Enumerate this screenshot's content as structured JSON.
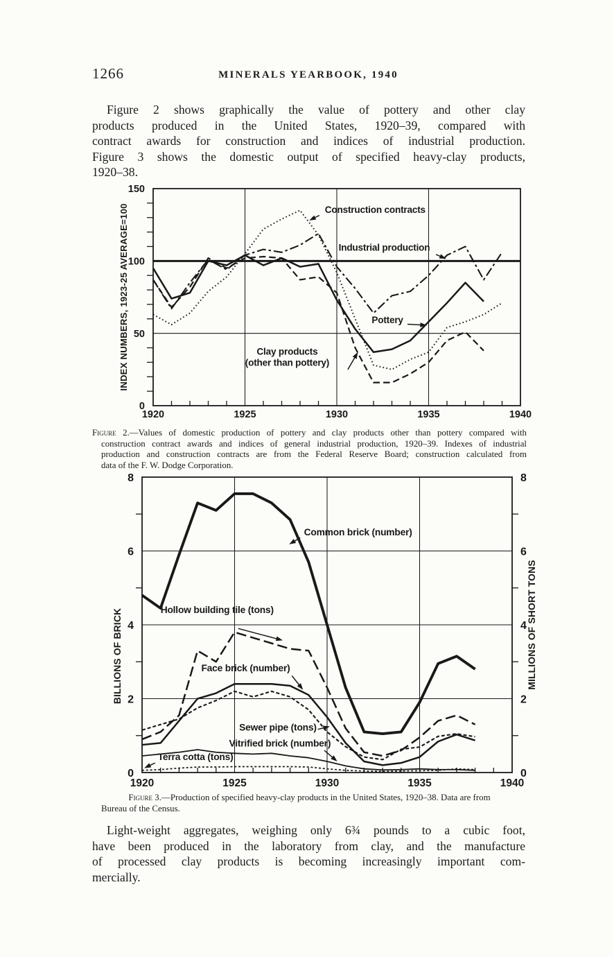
{
  "page": {
    "page_number": "1266",
    "running_head": "MINERALS YEARBOOK, 1940",
    "paragraph_1": {
      "lines": [
        "Figure 2 shows graphically the value of pottery and other clay",
        "products produced in the United States, 1920–39, compared with",
        "contract awards for construction and indices of industrial production.",
        "Figure 3 shows the domestic output of specified heavy-clay products,",
        "1920–38."
      ]
    },
    "figure2_caption": {
      "label": "Figure 2.",
      "lines": [
        "—Values of domestic production of pottery and clay products other than pottery compared with",
        "construction contract awards and indices of general industrial production, 1920–39. Indexes of industrial",
        "production and construction contracts are from the Federal Reserve Board; construction calculated from",
        "data of the F. W. Dodge Corporation."
      ]
    },
    "figure3_caption": {
      "label": "Figure 3.",
      "lines": [
        "—Production of specified heavy-clay products in the United States, 1920–38.  Data are from",
        "Bureau of the Census."
      ]
    },
    "paragraph_2": {
      "lines": [
        "Light-weight aggregates, weighing only 6¾ pounds to a cubic foot,",
        "have been produced in the laboratory from clay, and the manufacture",
        "of processed clay products is becoming increasingly important com-",
        "mercially."
      ]
    }
  },
  "ink_color": "#191919",
  "chart_data": [
    {
      "id": "figure2",
      "type": "line",
      "title": "",
      "xlabel": "",
      "ylabel": "INDEX NUMBERS, 1923-25 AVERAGE=100",
      "x_range": [
        1920,
        1940
      ],
      "ylim": [
        0,
        150
      ],
      "x_ticks_labeled": [
        1920,
        1925,
        1930,
        1935,
        1940
      ],
      "y_ticks_labeled": [
        0,
        50,
        100,
        150
      ],
      "y_minor_step": 10,
      "gridline_years": [
        1925,
        1930,
        1935
      ],
      "hlines": [
        {
          "value": 50,
          "weight": "thin"
        },
        {
          "value": 100,
          "weight": "heavy"
        }
      ],
      "grid": "partial",
      "legend_position": "in-plot labels with arrows",
      "series": [
        {
          "name": "Construction contracts",
          "line_style": "dotted",
          "start_year": 1920,
          "values": [
            63,
            56,
            64,
            79,
            89,
            105,
            122,
            129,
            135,
            118,
            92,
            60,
            28,
            25,
            32,
            37,
            54,
            58,
            63,
            71
          ]
        },
        {
          "name": "Industrial production",
          "line_style": "dash-dot",
          "start_year": 1920,
          "values": [
            87,
            67,
            85,
            101,
            94,
            104,
            108,
            106,
            111,
            119,
            96,
            81,
            64,
            76,
            79,
            90,
            104,
            110,
            87,
            106
          ]
        },
        {
          "name": "Pottery",
          "line_style": "solid",
          "start_year": 1920,
          "values": [
            95,
            74,
            78,
            100,
            97,
            104,
            97,
            102,
            96,
            98,
            73,
            53,
            37,
            39,
            45,
            58,
            71,
            85,
            72
          ]
        },
        {
          "name": "Clay products (other than pottery)",
          "line_style": "dashed",
          "start_year": 1920,
          "values": [
            87,
            68,
            82,
            102,
            95,
            102,
            103,
            102,
            87,
            89,
            78,
            40,
            16,
            16,
            22,
            30,
            45,
            51,
            38
          ]
        }
      ],
      "annotations": [
        {
          "lines": [
            "Construction contracts"
          ],
          "year": 1929.35,
          "value": 133.2,
          "anchor": "start",
          "arrow": {
            "from": {
              "year": 1929.05,
              "value": 131.5
            },
            "to": {
              "year": 1928.5,
              "value": 128
            }
          }
        },
        {
          "lines": [
            "Industrial production"
          ],
          "year": 1930.1,
          "value": 107,
          "anchor": "start",
          "arrow": {
            "from": {
              "year": 1935.4,
              "value": 104.5
            },
            "to": {
              "year": 1935.95,
              "value": 101.5
            }
          }
        },
        {
          "lines": [
            "Pottery"
          ],
          "year": 1931.9,
          "value": 57,
          "anchor": "start",
          "arrow": {
            "from": {
              "year": 1933.85,
              "value": 56.3
            },
            "to": {
              "year": 1934.9,
              "value": 55.6
            }
          }
        },
        {
          "lines": [
            "Clay products",
            "(other than pottery)"
          ],
          "year": 1927.3,
          "value": 35.3,
          "anchor": "middle",
          "arrow": {
            "from": {
              "year": 1930.6,
              "value": 25
            },
            "to": {
              "year": 1931.15,
              "value": 37
            }
          }
        }
      ]
    },
    {
      "id": "figure3",
      "type": "line",
      "title": "",
      "xlabel": "",
      "ylabel": "BILLIONS OF BRICK",
      "ylabel_right": "MILLIONS OF SHORT TONS",
      "x_range": [
        1920,
        1940
      ],
      "ylim": [
        0,
        8
      ],
      "x_ticks_labeled": [
        1920,
        1925,
        1930,
        1935,
        1940
      ],
      "y_ticks_labeled": [
        0,
        2,
        4,
        6,
        8
      ],
      "y_minor_ticks": [
        1,
        3,
        5,
        7
      ],
      "right_axis": true,
      "gridline_years": [
        1925,
        1930,
        1935
      ],
      "hlines": [
        {
          "value": 2,
          "weight": "thin"
        },
        {
          "value": 4,
          "weight": "thin"
        },
        {
          "value": 6,
          "weight": "thin"
        }
      ],
      "grid": "partial",
      "legend_position": "in-plot labels with arrows",
      "series": [
        {
          "name": "Common brick (number)",
          "line_style": "heavy-solid",
          "start_year": 1920,
          "values": [
            4.8,
            4.45,
            5.9,
            7.3,
            7.1,
            7.55,
            7.55,
            7.3,
            6.85,
            5.7,
            4.0,
            2.3,
            1.1,
            1.05,
            1.1,
            1.9,
            2.95,
            3.15,
            2.8
          ]
        },
        {
          "name": "Hollow building tile (tons)",
          "line_style": "long-dash",
          "start_year": 1920,
          "values": [
            0.9,
            1.1,
            1.55,
            3.3,
            3.0,
            3.8,
            3.65,
            3.5,
            3.35,
            3.3,
            2.3,
            1.2,
            0.55,
            0.45,
            0.6,
            0.95,
            1.4,
            1.55,
            1.3
          ]
        },
        {
          "name": "Face brick (number)",
          "line_style": "solid",
          "start_year": 1920,
          "values": [
            0.75,
            0.8,
            1.4,
            2.0,
            2.15,
            2.4,
            2.4,
            2.4,
            2.35,
            2.1,
            1.5,
            0.8,
            0.3,
            0.2,
            0.26,
            0.42,
            0.84,
            1.03,
            0.87
          ]
        },
        {
          "name": "Sewer pipe (tons)",
          "line_style": "short-dash",
          "start_year": 1920,
          "values": [
            1.15,
            1.3,
            1.45,
            1.75,
            1.95,
            2.2,
            2.05,
            2.2,
            2.05,
            1.7,
            1.1,
            0.7,
            0.42,
            0.35,
            0.63,
            0.69,
            0.98,
            1.05,
            0.97
          ]
        },
        {
          "name": "Vitrified brick (number)",
          "line_style": "thin-solid",
          "start_year": 1920,
          "values": [
            0.45,
            0.5,
            0.55,
            0.62,
            0.55,
            0.52,
            0.5,
            0.52,
            0.45,
            0.4,
            0.3,
            0.18,
            0.1,
            0.07,
            0.08,
            0.1,
            0.08,
            0.08,
            0.06
          ]
        },
        {
          "name": "Terra cotta (tons)",
          "line_style": "fine-dash",
          "start_year": 1920,
          "values": [
            0.06,
            0.08,
            0.12,
            0.15,
            0.15,
            0.16,
            0.16,
            0.16,
            0.16,
            0.15,
            0.1,
            0.06,
            0.04,
            0.03,
            0.04,
            0.05,
            0.06,
            0.1,
            0.08
          ]
        }
      ],
      "annotations": [
        {
          "lines": [
            "Common brick (number)"
          ],
          "year": 1928.75,
          "value": 6.42,
          "anchor": "start",
          "arrow": {
            "from": {
              "year": 1928.55,
              "value": 6.36
            },
            "to": {
              "year": 1927.95,
              "value": 6.18
            }
          }
        },
        {
          "lines": [
            "Hollow building tile (tons)"
          ],
          "year": 1921.0,
          "value": 4.32,
          "anchor": "start",
          "arrow": {
            "from": {
              "year": 1925.2,
              "value": 3.9
            },
            "to": {
              "year": 1927.6,
              "value": 3.58
            }
          }
        },
        {
          "lines": [
            "Face brick (number)"
          ],
          "year": 1923.2,
          "value": 2.74,
          "anchor": "start",
          "arrow": {
            "from": {
              "year": 1928.1,
              "value": 2.62
            },
            "to": {
              "year": 1928.7,
              "value": 2.24
            }
          }
        },
        {
          "lines": [
            "Sewer pipe (tons)"
          ],
          "year": 1925.25,
          "value": 1.14,
          "anchor": "start",
          "arrow": {
            "from": {
              "year": 1929.5,
              "value": 1.17
            },
            "to": {
              "year": 1930.15,
              "value": 1.25
            }
          }
        },
        {
          "lines": [
            "Vitrified brick (number)"
          ],
          "year": 1924.7,
          "value": 0.7,
          "anchor": "start",
          "arrow": {
            "from": {
              "year": 1929.85,
              "value": 0.6
            },
            "to": {
              "year": 1930.55,
              "value": 0.3
            }
          }
        },
        {
          "lines": [
            "Terra cotta (tons)"
          ],
          "year": 1920.85,
          "value": 0.34,
          "anchor": "start",
          "arrow": {
            "from": {
              "year": 1920.7,
              "value": 0.26
            },
            "to": {
              "year": 1920.12,
              "value": 0.12
            }
          }
        }
      ]
    }
  ]
}
